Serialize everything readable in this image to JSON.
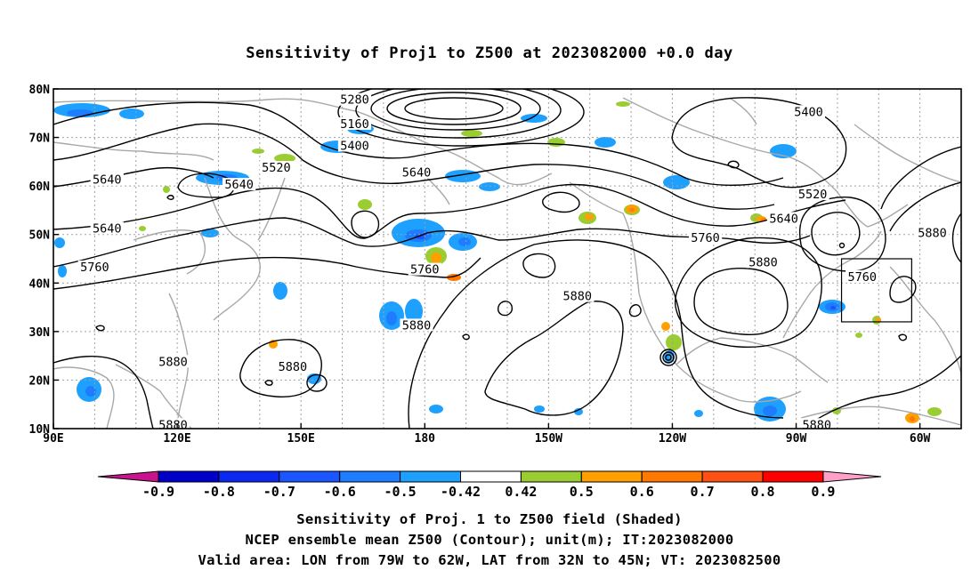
{
  "title": "Sensitivity of Proj1 to Z500 at 2023082000 +0.0 day",
  "captions": {
    "line1": "Sensitivity of Proj. 1 to Z500 field (Shaded)",
    "line2": "NCEP ensemble mean Z500 (Contour); unit(m); IT:2023082000",
    "line3": "Valid area: LON from 79W to 62W, LAT from 32N to 45N; VT: 2023082500"
  },
  "map": {
    "lon_range_deg_east": [
      90,
      310
    ],
    "lat_range": [
      10,
      80
    ],
    "lat_ticks": [
      {
        "lat": 80,
        "label": "80N"
      },
      {
        "lat": 70,
        "label": "70N"
      },
      {
        "lat": 60,
        "label": "60N"
      },
      {
        "lat": 50,
        "label": "50N"
      },
      {
        "lat": 40,
        "label": "40N"
      },
      {
        "lat": 30,
        "label": "30N"
      },
      {
        "lat": 20,
        "label": "20N"
      },
      {
        "lat": 10,
        "label": "10N"
      }
    ],
    "lon_ticks": [
      {
        "lon": 90,
        "label": "90E"
      },
      {
        "lon": 120,
        "label": "120E"
      },
      {
        "lon": 150,
        "label": "150E"
      },
      {
        "lon": 180,
        "label": "180"
      },
      {
        "lon": 210,
        "label": "150W"
      },
      {
        "lon": 240,
        "label": "120W"
      },
      {
        "lon": 270,
        "label": "90W"
      },
      {
        "lon": 300,
        "label": "60W"
      }
    ],
    "grid": "dotted",
    "valid_area": {
      "lon_west": 281,
      "lon_east": 298,
      "lat_south": 32,
      "lat_north": 45
    }
  },
  "contour_labels": [
    {
      "text": "5280",
      "lon": 163,
      "lat": 77.5
    },
    {
      "text": "5160",
      "lon": 163,
      "lat": 72.5
    },
    {
      "text": "5400",
      "lon": 163,
      "lat": 68
    },
    {
      "text": "5520",
      "lon": 144,
      "lat": 63.5
    },
    {
      "text": "5640",
      "lon": 178,
      "lat": 62.5
    },
    {
      "text": "5400",
      "lon": 273,
      "lat": 75
    },
    {
      "text": "5640",
      "lon": 103,
      "lat": 61
    },
    {
      "text": "5640",
      "lon": 135,
      "lat": 60
    },
    {
      "text": "5520",
      "lon": 274,
      "lat": 58
    },
    {
      "text": "5640",
      "lon": 267,
      "lat": 53
    },
    {
      "text": "5640",
      "lon": 103,
      "lat": 51
    },
    {
      "text": "5760",
      "lon": 248,
      "lat": 49
    },
    {
      "text": "5880",
      "lon": 303,
      "lat": 50
    },
    {
      "text": "5760",
      "lon": 100,
      "lat": 43
    },
    {
      "text": "5880",
      "lon": 262,
      "lat": 44
    },
    {
      "text": "5760",
      "lon": 180,
      "lat": 42.5
    },
    {
      "text": "5760",
      "lon": 286,
      "lat": 41
    },
    {
      "text": "5880",
      "lon": 217,
      "lat": 37
    },
    {
      "text": "5880",
      "lon": 178,
      "lat": 31
    },
    {
      "text": "5880",
      "lon": 119,
      "lat": 23.5
    },
    {
      "text": "5880",
      "lon": 148,
      "lat": 22.5
    },
    {
      "text": "5880",
      "lon": 119,
      "lat": 10.5
    },
    {
      "text": "5880",
      "lon": 275,
      "lat": 10.5
    }
  ],
  "colorbar": {
    "labels": [
      "-0.9",
      "-0.8",
      "-0.7",
      "-0.6",
      "-0.5",
      "-0.42",
      "0.42",
      "0.5",
      "0.6",
      "0.7",
      "0.8",
      "0.9"
    ],
    "colors": [
      "#0000c8",
      "#0a28f0",
      "#1a55ff",
      "#1e7cff",
      "#1ea0ff",
      "#ffffff",
      "#9acd32",
      "#ffa000",
      "#ff7800",
      "#ff5014",
      "#ff0000"
    ],
    "low_extend_color": "#c8148c",
    "high_extend_color": "#ffa0c8"
  }
}
